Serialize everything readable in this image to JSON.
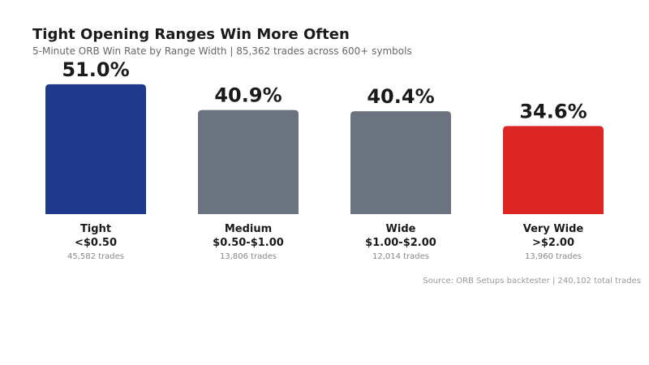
{
  "chart_data": {
    "type": "bar",
    "title": "Tight Opening Ranges Win More Often",
    "subtitle": "5-Minute ORB Win Rate by Range Width | 85,362 trades across 600+ symbols",
    "categories": [
      "Tight",
      "Medium",
      "Wide",
      "Very Wide"
    ],
    "ranges": [
      "<$0.50",
      "$0.50-$1.00",
      "$1.00-$2.00",
      ">$2.00"
    ],
    "trade_counts": [
      "45,582 trades",
      "13,806 trades",
      "12,014 trades",
      "13,960 trades"
    ],
    "values": [
      51.0,
      40.9,
      40.4,
      34.6
    ],
    "value_labels": [
      "51.0%",
      "40.9%",
      "40.4%",
      "34.6%"
    ],
    "colors": [
      "#1f3a8a",
      "#6b7280",
      "#6b7280",
      "#dc2626"
    ],
    "ylim": [
      0,
      100
    ],
    "grid": false,
    "source": "Source: ORB Setups backtester | 240,102 total trades"
  }
}
